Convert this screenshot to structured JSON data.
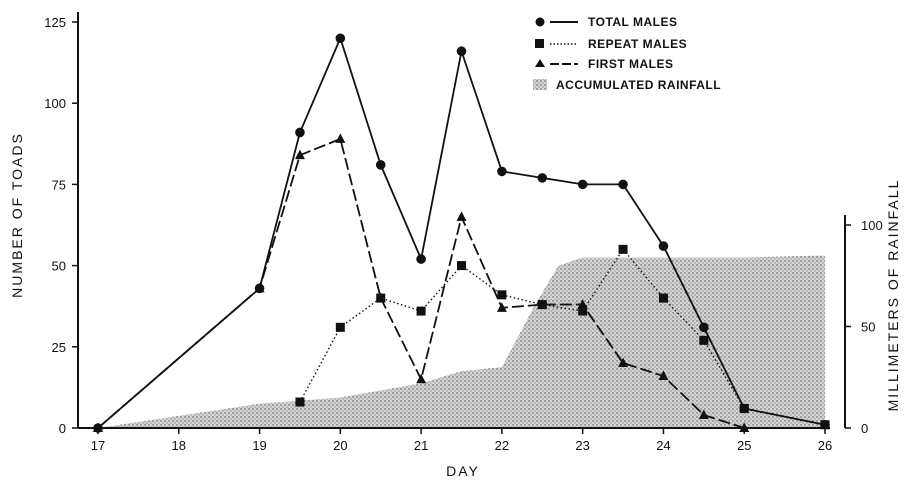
{
  "chart_data": {
    "type": "line",
    "xlabel": "DAY",
    "ylabel": "NUMBER OF TOADS",
    "y2label": "MILLIMETERS OF RAINFALL",
    "xlim": [
      17,
      26
    ],
    "ylim": [
      0,
      125
    ],
    "y2lim": [
      0,
      105
    ],
    "x_ticks": [
      "17",
      "18",
      "19",
      "20",
      "21",
      "22",
      "23",
      "24",
      "25",
      "26"
    ],
    "y_ticks": [
      "0",
      "25",
      "50",
      "75",
      "100",
      "125"
    ],
    "y2_ticks": [
      "0",
      "50",
      "100"
    ],
    "legend_position": "top-right",
    "series": [
      {
        "name": "TOTAL MALES",
        "style": "solid",
        "marker": "circle",
        "x": [
          17,
          19,
          19.5,
          20,
          20.5,
          21,
          21.5,
          22,
          22.5,
          23,
          23.5,
          24,
          24.5,
          25,
          26
        ],
        "y": [
          0,
          43,
          91,
          120,
          81,
          52,
          116,
          79,
          77,
          75,
          75,
          56,
          31,
          6,
          1
        ]
      },
      {
        "name": "REPEAT MALES",
        "style": "dotted",
        "marker": "square",
        "x": [
          19.5,
          20,
          20.5,
          21,
          21.5,
          22,
          22.5,
          23,
          23.5,
          24,
          24.5,
          25,
          26
        ],
        "y": [
          8,
          31,
          40,
          36,
          50,
          41,
          38,
          36,
          55,
          40,
          27,
          6,
          1
        ]
      },
      {
        "name": "FIRST MALES",
        "style": "dashed",
        "marker": "triangle",
        "x": [
          17,
          19,
          19.5,
          20,
          20.5,
          21,
          21.5,
          22,
          22.5,
          23,
          23.5,
          24,
          24.5,
          25
        ],
        "y": [
          0,
          43,
          84,
          89,
          40,
          15,
          65,
          37,
          38,
          38,
          20,
          16,
          4,
          0
        ]
      }
    ],
    "area": {
      "name": "ACCUMULATED RAINFALL",
      "axis": "right",
      "x": [
        17,
        18,
        19,
        20,
        21,
        21.5,
        22,
        22.4,
        22.7,
        23,
        23.5,
        24,
        25,
        26
      ],
      "y": [
        0,
        6,
        12,
        15,
        22,
        28,
        30,
        60,
        80,
        84,
        84,
        84,
        84,
        85
      ]
    }
  },
  "colors": {
    "ink": "#111111",
    "area_fill": "#c8c8c8"
  }
}
